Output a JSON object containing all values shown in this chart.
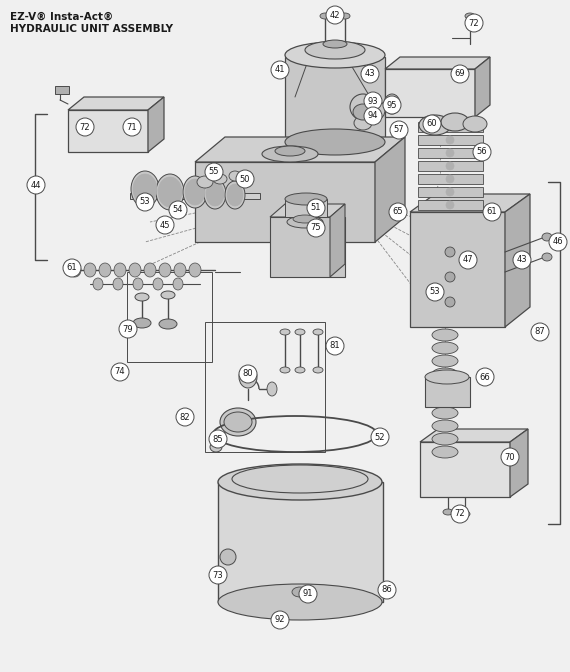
{
  "title_line1": "EZ-V® Insta-Act®",
  "title_line2": "HYDRAULIC UNIT ASSEMBLY",
  "bg_color": "#f0f0f0",
  "line_color": "#4a4a4a",
  "fill_light": "#e0e0e0",
  "fill_mid": "#c8c8c8",
  "fill_dark": "#b0b0b0",
  "white": "#ffffff",
  "text_color": "#1a1a1a"
}
